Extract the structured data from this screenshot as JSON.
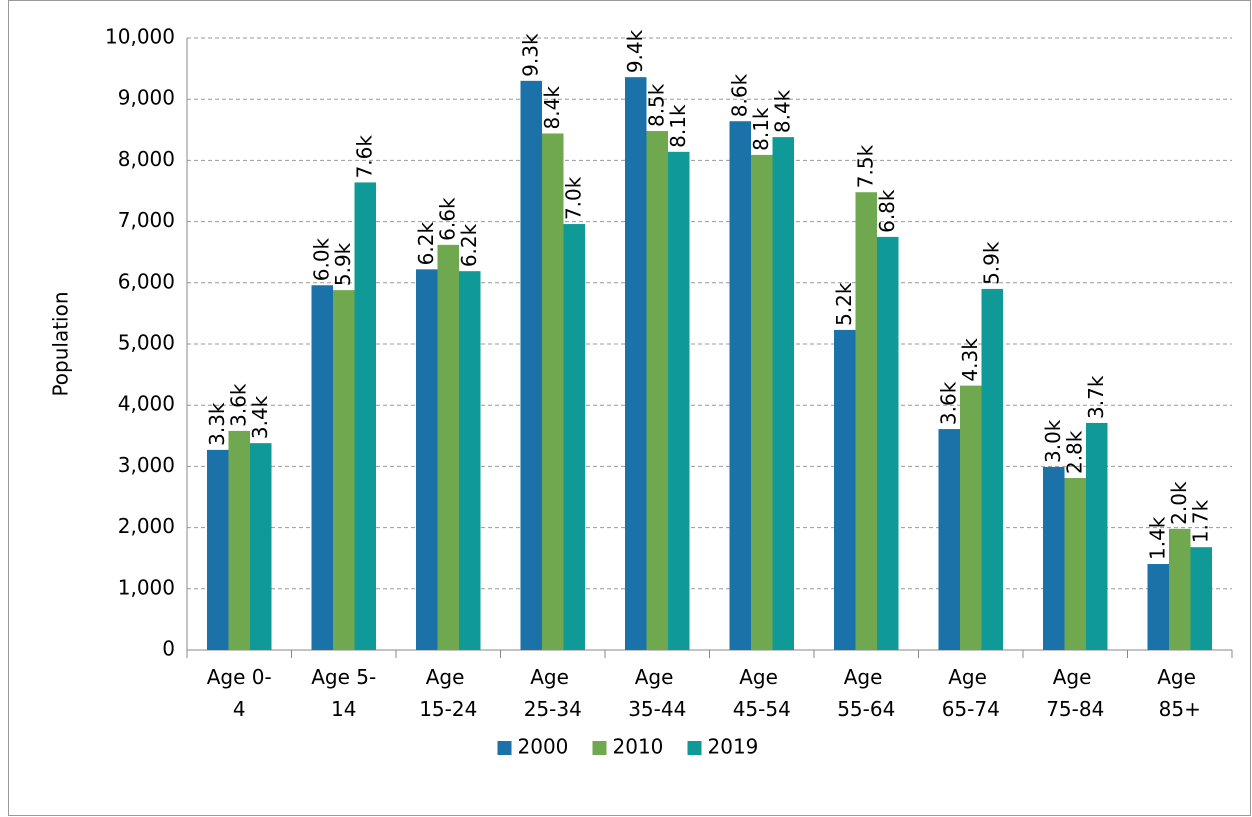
{
  "chart_data": {
    "type": "bar",
    "y_label": "Population",
    "categories": [
      "Age 0-4",
      "Age 5-14",
      "Age 15-24",
      "Age 25-34",
      "Age 35-44",
      "Age 45-54",
      "Age 55-64",
      "Age 65-74",
      "Age 75-84",
      "Age 85+"
    ],
    "series": [
      {
        "name": "2000",
        "color": "#1a72a8",
        "values": [
          3270,
          5960,
          6220,
          9300,
          9360,
          8640,
          5230,
          3610,
          2990,
          1405
        ],
        "value_labels": [
          "3.3k",
          "6.0k",
          "6.2k",
          "9.3k",
          "9.4k",
          "8.6k",
          "5.2k",
          "3.6k",
          "3.0k",
          "1.4k"
        ]
      },
      {
        "name": "2010",
        "color": "#70a84f",
        "values": [
          3580,
          5880,
          6620,
          8440,
          8480,
          8090,
          7480,
          4320,
          2810,
          1980
        ],
        "value_labels": [
          "3.6k",
          "5.9k",
          "6.6k",
          "8.4k",
          "8.5k",
          "8.1k",
          "7.5k",
          "4.3k",
          "2.8k",
          "2.0k"
        ]
      },
      {
        "name": "2019",
        "color": "#0f9a97",
        "values": [
          3380,
          7640,
          6190,
          6960,
          8140,
          8380,
          6750,
          5900,
          3710,
          1680
        ],
        "value_labels": [
          "3.4k",
          "7.6k",
          "6.2k",
          "7.0k",
          "8.1k",
          "8.4k",
          "6.8k",
          "5.9k",
          "3.7k",
          "1.7k"
        ]
      }
    ],
    "ylim": [
      0,
      10000
    ],
    "yticks": [
      0,
      {
        "value": 1000,
        "label": "1,000"
      },
      {
        "value": 2000,
        "label": "2,000"
      },
      {
        "value": 3000,
        "label": "3,000"
      },
      {
        "value": 4000,
        "label": "4,000"
      },
      {
        "value": 5000,
        "label": "5,000"
      },
      {
        "value": 6000,
        "label": "6,000"
      },
      {
        "value": 7000,
        "label": "7,000"
      },
      {
        "value": 8000,
        "label": "8,000"
      },
      {
        "value": 9000,
        "label": "9,000"
      },
      {
        "value": 10000,
        "label": "10,000"
      }
    ],
    "grid": true,
    "legend": "bottom"
  }
}
